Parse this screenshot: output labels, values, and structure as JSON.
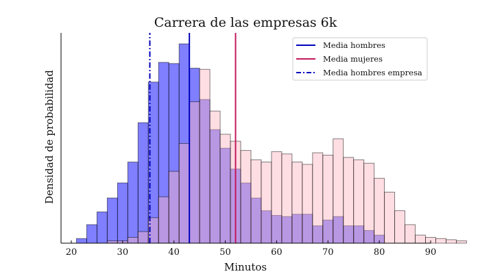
{
  "chart_data": {
    "type": "histogram",
    "title": "Carrera de las empresas 6k",
    "xlabel": "Minutos",
    "ylabel": "Densidad de probabilidad",
    "xlim": [
      18,
      90
    ],
    "xticks": [
      20,
      30,
      40,
      50,
      60,
      70,
      80,
      90
    ],
    "y_max_units": 100,
    "grid": false,
    "legend_placement": "top-right",
    "series": [
      {
        "name": "Hombres empresa",
        "color": "#0000ff",
        "opacity": 0.5,
        "bin_start": 21,
        "bin_width": 2.0,
        "values": [
          2.0,
          8.0,
          13.5,
          19.5,
          26.0,
          35.0,
          52.0,
          69.5,
          78.0,
          77.5,
          86.0,
          75.5,
          62.0,
          49.0,
          41.0,
          32.0,
          26.0,
          19.5,
          14.0,
          12.0,
          11.5,
          12.5,
          12.5,
          7.5,
          10.0,
          11.5,
          7.5,
          7.5,
          5.5,
          3.5
        ]
      },
      {
        "name": "Mujeres",
        "color": "#ffb6c1",
        "opacity": 0.45,
        "bin_start": 23,
        "bin_width": 2.0,
        "values": [
          0.0,
          0.0,
          1.0,
          1.0,
          2.5,
          5.0,
          11.0,
          20.0,
          31.0,
          43.0,
          61.0,
          75.0,
          57.0,
          47.0,
          44.0,
          40.0,
          36.0,
          35.0,
          39.5,
          38.5,
          35.0,
          34.0,
          39.0,
          38.0,
          45.0,
          37.0,
          36.0,
          34.5,
          28.0,
          22.0,
          14.0,
          8.0,
          3.5,
          2.5,
          2.0,
          1.5,
          1.0
        ]
      }
    ],
    "lines": [
      {
        "name": "Media hombres",
        "x": 43.0,
        "color": "#0000bb",
        "style": "solid"
      },
      {
        "name": "Media mujeres",
        "x": 52.0,
        "color": "#c2185b",
        "style": "solid"
      },
      {
        "name": "Media hombres empresa",
        "x": 35.3,
        "color": "#0000bb",
        "style": "dashdot"
      }
    ]
  }
}
